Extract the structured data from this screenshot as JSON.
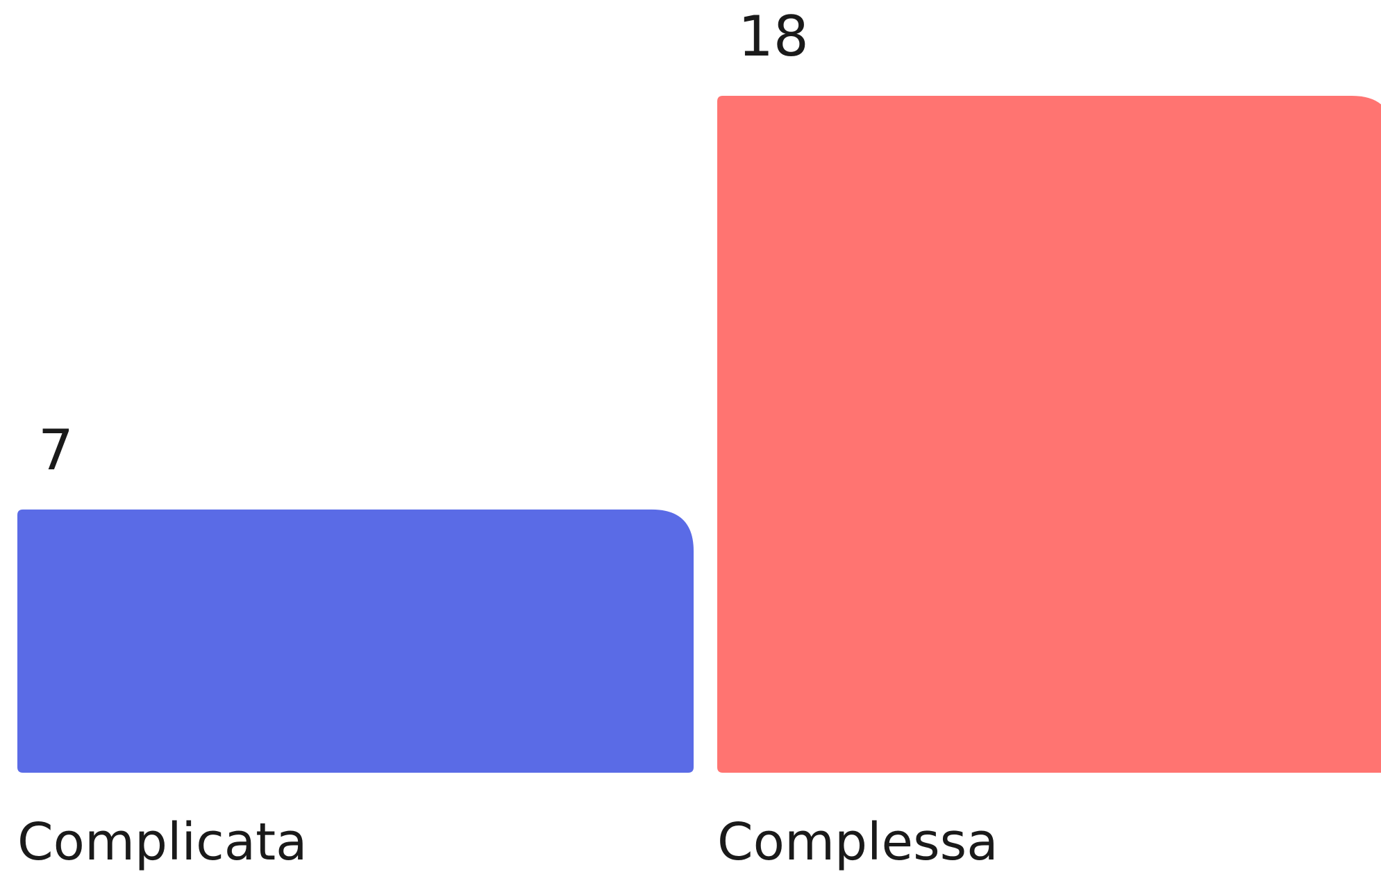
{
  "chart_data": {
    "type": "bar",
    "categories": [
      "Complicata",
      "Complessa"
    ],
    "values": [
      7,
      18
    ],
    "colors": [
      "#5A6BE6",
      "#FF7471"
    ],
    "ylim": [
      0,
      18
    ],
    "grid": false,
    "legend": "none"
  }
}
